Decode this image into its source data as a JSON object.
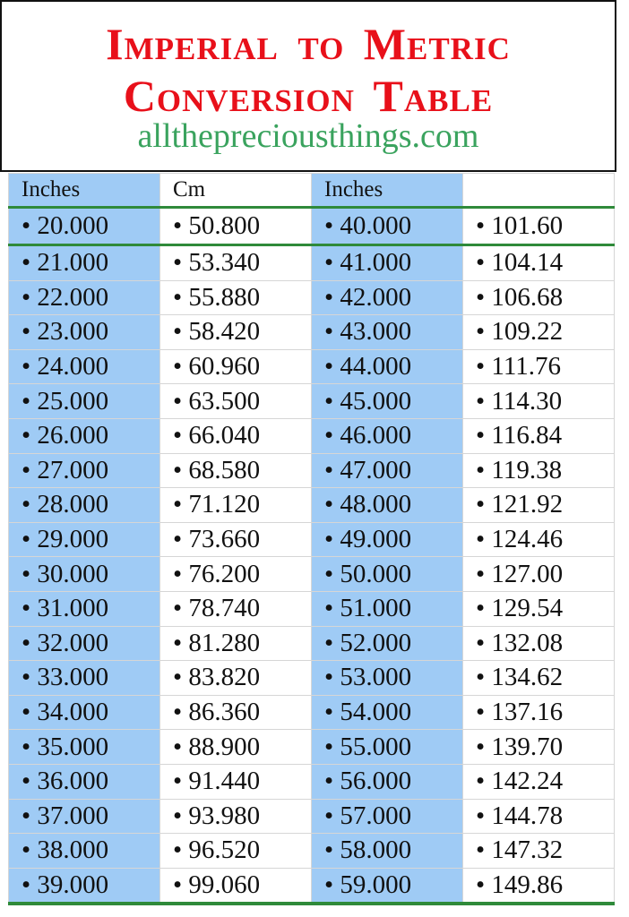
{
  "title": {
    "line1": "Imperial to Metric",
    "line2": "Conversion Table",
    "website": "allthepreciousthings.com"
  },
  "colors": {
    "title": "#e8101a",
    "website": "#3aa35e",
    "inches_column_bg": "#9fcbf5",
    "rule": "#2f8a3a"
  },
  "table": {
    "headers": [
      "Inches",
      "Cm",
      "Inches",
      ""
    ],
    "rows": [
      [
        "• 20.000",
        "• 50.800",
        "• 40.000",
        "• 101.60"
      ],
      [
        "• 21.000",
        "• 53.340",
        "• 41.000",
        "• 104.14"
      ],
      [
        "• 22.000",
        "• 55.880",
        "• 42.000",
        "• 106.68"
      ],
      [
        "• 23.000",
        "• 58.420",
        "• 43.000",
        "• 109.22"
      ],
      [
        "• 24.000",
        "• 60.960",
        "• 44.000",
        "• 111.76"
      ],
      [
        "• 25.000",
        "• 63.500",
        "• 45.000",
        "• 114.30"
      ],
      [
        "• 26.000",
        "• 66.040",
        "• 46.000",
        "• 116.84"
      ],
      [
        "• 27.000",
        "• 68.580",
        "• 47.000",
        "• 119.38"
      ],
      [
        "• 28.000",
        "• 71.120",
        "• 48.000",
        "• 121.92"
      ],
      [
        "• 29.000",
        "• 73.660",
        "• 49.000",
        "• 124.46"
      ],
      [
        "• 30.000",
        "• 76.200",
        "• 50.000",
        "• 127.00"
      ],
      [
        "• 31.000",
        "• 78.740",
        "• 51.000",
        "• 129.54"
      ],
      [
        "• 32.000",
        "• 81.280",
        "• 52.000",
        "• 132.08"
      ],
      [
        "• 33.000",
        "• 83.820",
        "• 53.000",
        "• 134.62"
      ],
      [
        "• 34.000",
        "• 86.360",
        "• 54.000",
        "• 137.16"
      ],
      [
        "• 35.000",
        "• 88.900",
        "• 55.000",
        "• 139.70"
      ],
      [
        "• 36.000",
        "• 91.440",
        "• 56.000",
        "• 142.24"
      ],
      [
        "• 37.000",
        "• 93.980",
        "• 57.000",
        "• 144.78"
      ],
      [
        "• 38.000",
        "• 96.520",
        "• 58.000",
        "• 147.32"
      ],
      [
        "• 39.000",
        "• 99.060",
        "• 59.000",
        "• 149.86"
      ]
    ]
  }
}
